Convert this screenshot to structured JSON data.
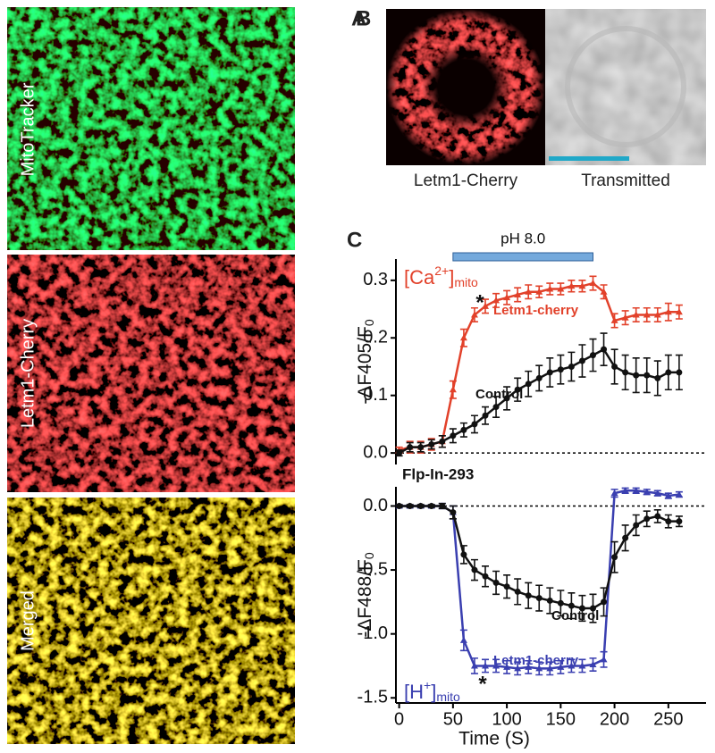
{
  "panel_labels": [
    "A",
    "B",
    "C"
  ],
  "panel_a": {
    "labels": [
      "MitoTracker",
      "Letm1-Cherry",
      "Merged"
    ]
  },
  "panel_b": {
    "labels": [
      "Letm1-Cherry",
      "Transmitted"
    ]
  },
  "chart_data": [
    {
      "type": "line",
      "y_label": {
        "text": "-ΔF405/F",
        "sub": "0"
      },
      "species_label": {
        "text": "[Ca",
        "sup": "2+",
        "close": "]",
        "sub": "mito"
      },
      "ph_bar": {
        "label": "pH 8.0",
        "start": 50,
        "end": 180
      },
      "annotations": [
        "*"
      ],
      "x": [
        0,
        10,
        20,
        30,
        40,
        50,
        60,
        70,
        80,
        90,
        100,
        110,
        120,
        130,
        140,
        150,
        160,
        170,
        180,
        190,
        200,
        210,
        220,
        230,
        240,
        250,
        260
      ],
      "xlim": [
        -3,
        285
      ],
      "ylim": [
        -0.02,
        0.337
      ],
      "yticks": [
        {
          "value": 0,
          "label": "0.0"
        },
        0.1,
        0.2,
        0.3
      ],
      "series": [
        {
          "name": "Letm1-cherry",
          "color": "#e2412a",
          "marker": "triangle",
          "values": [
            0.005,
            0.01,
            0.01,
            0.015,
            0.02,
            0.11,
            0.2,
            0.24,
            0.255,
            0.265,
            0.27,
            0.275,
            0.28,
            0.28,
            0.285,
            0.285,
            0.29,
            0.29,
            0.295,
            0.28,
            0.23,
            0.235,
            0.24,
            0.24,
            0.24,
            0.245,
            0.245
          ],
          "errors": [
            0.005,
            0.01,
            0.01,
            0.01,
            0.01,
            0.015,
            0.015,
            0.012,
            0.012,
            0.012,
            0.012,
            0.012,
            0.012,
            0.01,
            0.01,
            0.01,
            0.01,
            0.01,
            0.012,
            0.012,
            0.012,
            0.012,
            0.012,
            0.012,
            0.012,
            0.015,
            0.012
          ]
        },
        {
          "name": "Control",
          "color": "#111111",
          "marker": "circle",
          "values": [
            0,
            0.01,
            0.01,
            0.015,
            0.02,
            0.03,
            0.04,
            0.05,
            0.065,
            0.08,
            0.095,
            0.11,
            0.12,
            0.13,
            0.14,
            0.145,
            0.15,
            0.16,
            0.17,
            0.18,
            0.15,
            0.14,
            0.135,
            0.135,
            0.13,
            0.14,
            0.14
          ],
          "errors": [
            0.005,
            0.008,
            0.008,
            0.008,
            0.01,
            0.012,
            0.012,
            0.015,
            0.015,
            0.018,
            0.02,
            0.02,
            0.022,
            0.022,
            0.025,
            0.025,
            0.025,
            0.028,
            0.028,
            0.028,
            0.03,
            0.03,
            0.03,
            0.03,
            0.03,
            0.03,
            0.03
          ]
        }
      ]
    },
    {
      "type": "line",
      "title": "Flp-In-293",
      "y_label": {
        "text": "-ΔF488/F",
        "sub": "0"
      },
      "x_label": "Time (S)",
      "species_label": {
        "text": "[H",
        "sup": "+",
        "close": "]",
        "sub": "mito"
      },
      "annotations": [
        "*"
      ],
      "x": [
        0,
        10,
        20,
        30,
        40,
        50,
        60,
        70,
        80,
        90,
        100,
        110,
        120,
        130,
        140,
        150,
        160,
        170,
        180,
        190,
        200,
        210,
        220,
        230,
        240,
        250,
        260
      ],
      "xlim": [
        -3,
        285
      ],
      "xticks": [
        0,
        50,
        100,
        150,
        200,
        250
      ],
      "ylim": [
        -1.54,
        0.15
      ],
      "yticks": [
        {
          "value": 0,
          "label": "0.0"
        },
        -0.5,
        {
          "value": -1,
          "label": "-1.0"
        },
        -1.5
      ],
      "series": [
        {
          "name": "Letm1-cherry",
          "color": "#3a3fb0",
          "marker": "triangle",
          "values": [
            0,
            0,
            0,
            0,
            0,
            -0.05,
            -1.05,
            -1.25,
            -1.25,
            -1.25,
            -1.26,
            -1.27,
            -1.26,
            -1.27,
            -1.27,
            -1.26,
            -1.25,
            -1.25,
            -1.24,
            -1.2,
            0.1,
            0.12,
            0.12,
            0.11,
            0.1,
            0.08,
            0.09
          ],
          "errors": [
            0.01,
            0.01,
            0.01,
            0.01,
            0.02,
            0.05,
            0.08,
            0.06,
            0.05,
            0.05,
            0.05,
            0.05,
            0.05,
            0.05,
            0.05,
            0.05,
            0.05,
            0.05,
            0.05,
            0.06,
            0.03,
            0.02,
            0.02,
            0.02,
            0.02,
            0.02,
            0.02
          ]
        },
        {
          "name": "Control",
          "color": "#111111",
          "marker": "circle",
          "values": [
            0,
            0,
            0,
            0,
            0,
            -0.05,
            -0.38,
            -0.5,
            -0.55,
            -0.6,
            -0.63,
            -0.67,
            -0.7,
            -0.72,
            -0.74,
            -0.76,
            -0.78,
            -0.8,
            -0.8,
            -0.75,
            -0.4,
            -0.25,
            -0.15,
            -0.1,
            -0.08,
            -0.12,
            -0.12
          ],
          "errors": [
            0.01,
            0.01,
            0.01,
            0.01,
            0.02,
            0.05,
            0.07,
            0.08,
            0.08,
            0.09,
            0.09,
            0.1,
            0.1,
            0.1,
            0.1,
            0.1,
            0.1,
            0.1,
            0.11,
            0.11,
            0.12,
            0.1,
            0.08,
            0.06,
            0.05,
            0.05,
            0.04
          ]
        }
      ]
    }
  ]
}
